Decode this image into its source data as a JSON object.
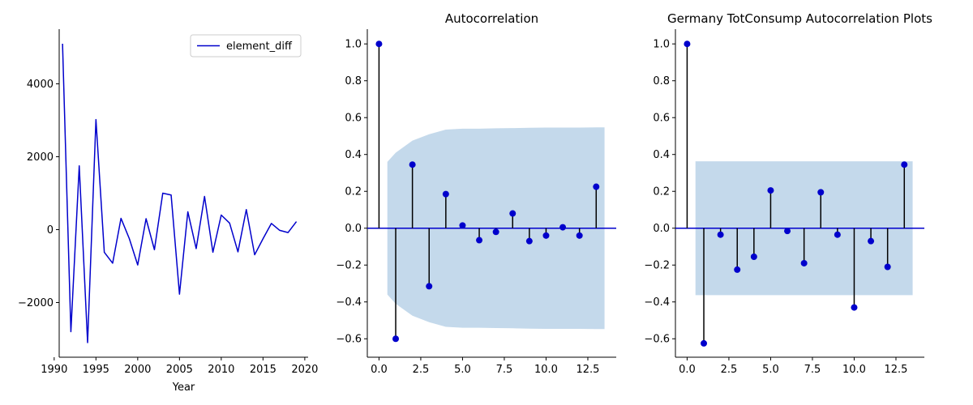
{
  "chart_data": [
    {
      "type": "line",
      "title": "",
      "xlabel": "Year",
      "ylabel": "",
      "xlim": [
        1990.6,
        2020.4
      ],
      "ylim": [
        -3500,
        5500
      ],
      "xticks": [
        1990,
        1995,
        2000,
        2005,
        2010,
        2015,
        2020
      ],
      "yticks": [
        -2000,
        0,
        2000,
        4000
      ],
      "legend_position": "top-right",
      "series": [
        {
          "name": "element_diff",
          "color": "#0000cc",
          "x": [
            1991,
            1992,
            1993,
            1994,
            1995,
            1996,
            1997,
            1998,
            1999,
            2000,
            2001,
            2002,
            2003,
            2004,
            2005,
            2006,
            2007,
            2008,
            2009,
            2010,
            2011,
            2012,
            2013,
            2014,
            2015,
            2016,
            2017,
            2018,
            2019
          ],
          "y": [
            5100,
            -2800,
            1750,
            -3100,
            3020,
            -620,
            -920,
            310,
            -250,
            -970,
            300,
            -550,
            1000,
            950,
            -1770,
            490,
            -520,
            910,
            -620,
            400,
            180,
            -610,
            550,
            -690,
            -250,
            170,
            -20,
            -80,
            220
          ]
        }
      ]
    },
    {
      "type": "stem",
      "title": "Autocorrelation",
      "xlabel": "",
      "ylabel": "",
      "xlim": [
        -0.7,
        14.2
      ],
      "ylim": [
        -0.7,
        1.08
      ],
      "xticks": [
        0.0,
        2.5,
        5.0,
        7.5,
        10.0,
        12.5
      ],
      "xtick_labels": [
        "0.0",
        "2.5",
        "5.0",
        "7.5",
        "10.0",
        "12.5"
      ],
      "yticks": [
        -0.6,
        -0.4,
        -0.2,
        0.0,
        0.2,
        0.4,
        0.6,
        0.8,
        1.0
      ],
      "ytick_labels": [
        "−0.6",
        "−0.4",
        "−0.2",
        "0.0",
        "0.2",
        "0.4",
        "0.6",
        "0.8",
        "1.0"
      ],
      "marker_color": "#0000cc",
      "stem_color": "#000000",
      "band_color": "#c4d9eb",
      "x": [
        0,
        1,
        2,
        3,
        4,
        5,
        6,
        7,
        8,
        9,
        10,
        11,
        12,
        13
      ],
      "values": [
        1.0,
        -0.6,
        0.345,
        -0.315,
        0.185,
        0.015,
        -0.065,
        -0.02,
        0.08,
        -0.07,
        -0.04,
        0.005,
        -0.04,
        0.225
      ],
      "confint_x": [
        0.5,
        1,
        2,
        3,
        4,
        5,
        6,
        7,
        8,
        9,
        10,
        11,
        12,
        13,
        13.5
      ],
      "confint_upper": [
        0.36,
        0.41,
        0.475,
        0.51,
        0.535,
        0.54,
        0.54,
        0.542,
        0.543,
        0.545,
        0.546,
        0.546,
        0.546,
        0.547,
        0.547
      ]
    },
    {
      "type": "stem",
      "title": "Germany TotConsump Autocorrelation Plots",
      "xlabel": "",
      "ylabel": "",
      "xlim": [
        -0.7,
        14.2
      ],
      "ylim": [
        -0.7,
        1.08
      ],
      "xticks": [
        0.0,
        2.5,
        5.0,
        7.5,
        10.0,
        12.5
      ],
      "xtick_labels": [
        "0.0",
        "2.5",
        "5.0",
        "7.5",
        "10.0",
        "12.5"
      ],
      "yticks": [
        -0.6,
        -0.4,
        -0.2,
        0.0,
        0.2,
        0.4,
        0.6,
        0.8,
        1.0
      ],
      "ytick_labels": [
        "−0.6",
        "−0.4",
        "−0.2",
        "0.0",
        "0.2",
        "0.4",
        "0.6",
        "0.8",
        "1.0"
      ],
      "marker_color": "#0000cc",
      "stem_color": "#000000",
      "band_color": "#c4d9eb",
      "x": [
        0,
        1,
        2,
        3,
        4,
        5,
        6,
        7,
        8,
        9,
        10,
        11,
        12,
        13
      ],
      "values": [
        1.0,
        -0.625,
        -0.035,
        -0.225,
        -0.155,
        0.205,
        -0.015,
        -0.19,
        0.195,
        -0.035,
        -0.43,
        -0.07,
        -0.21,
        0.345
      ],
      "confint_x": [
        0.5,
        13.5
      ],
      "confint_upper": [
        0.363,
        0.363
      ]
    }
  ]
}
